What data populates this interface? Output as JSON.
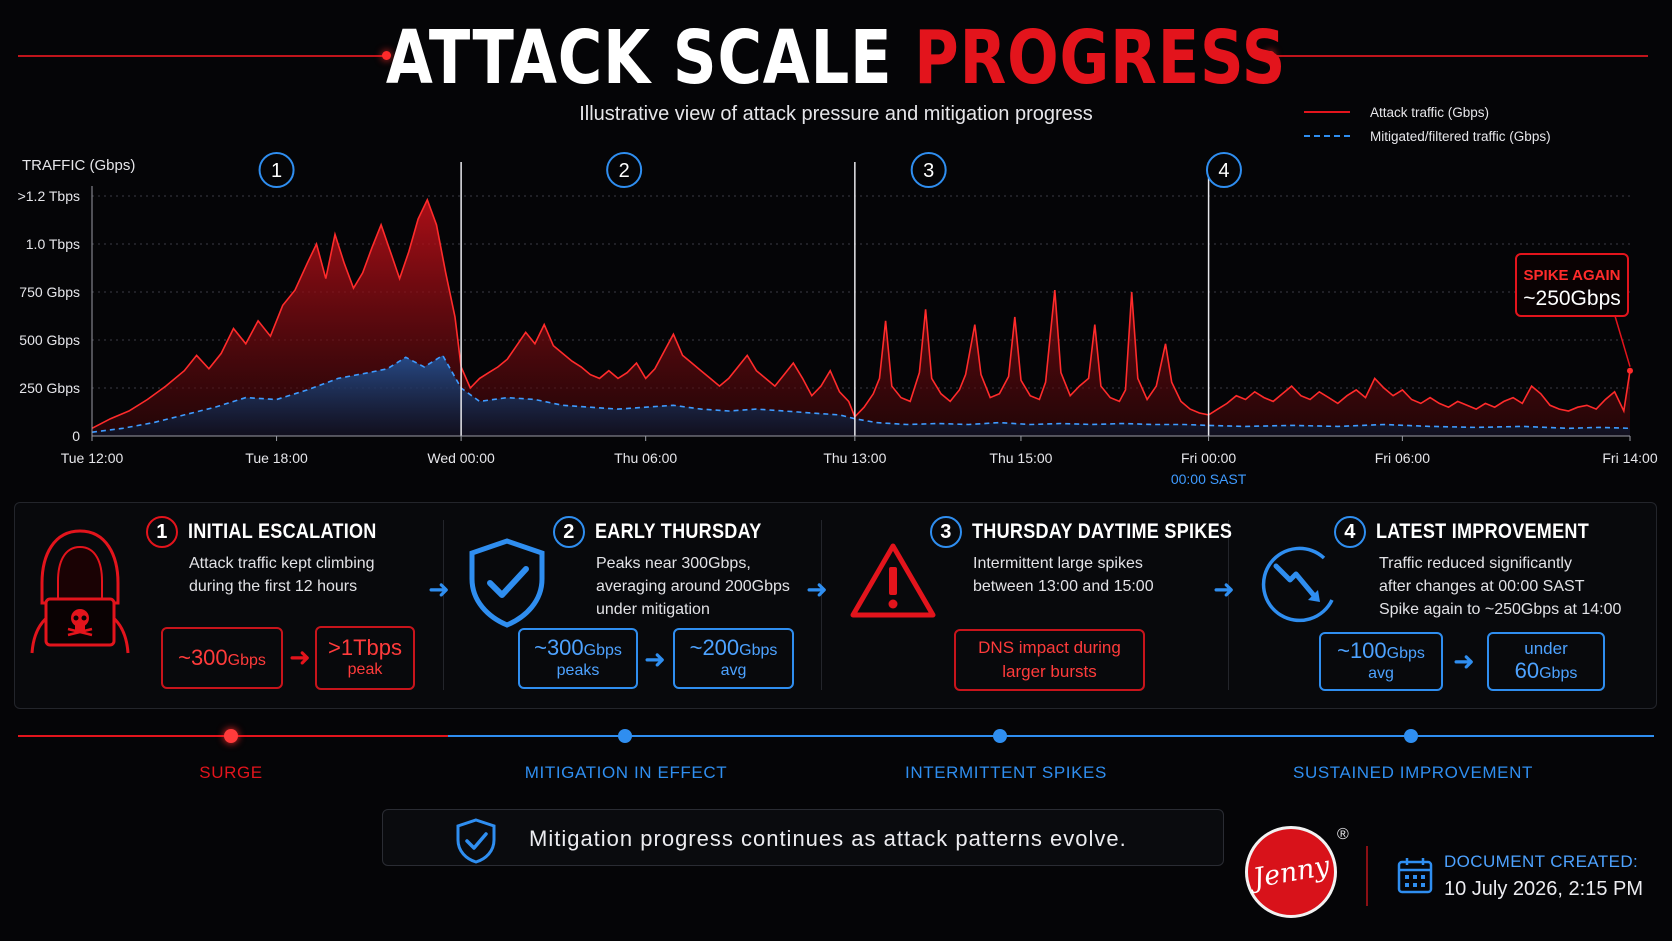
{
  "title": {
    "white": "ATTACK SCALE",
    "red": "PROGRESS"
  },
  "subtitle": "Illustrative view of attack pressure and mitigation progress",
  "legend": [
    {
      "label": "Attack traffic (Gbps)",
      "color": "#e3141c",
      "style": "solid"
    },
    {
      "label": "Mitigated/filtered traffic (Gbps)",
      "color": "#2f8ef0",
      "style": "dashed"
    }
  ],
  "colors": {
    "attack": "#e3141c",
    "mitigated": "#2f8ef0",
    "background": "#050507"
  },
  "chart_data": {
    "type": "area",
    "ylabel": "TRAFFIC (Gbps)",
    "y_ticks": [
      {
        "value": 0,
        "label": "0"
      },
      {
        "value": 250,
        "label": "250 Gbps"
      },
      {
        "value": 500,
        "label": "500 Gbps"
      },
      {
        "value": 750,
        "label": "750 Gbps"
      },
      {
        "value": 1000,
        "label": "1.0 Tbps"
      },
      {
        "value": 1250,
        "label": ">1.2 Tbps"
      }
    ],
    "ylim": [
      0,
      1250
    ],
    "x_ticks": [
      "Tue 12:00",
      "Tue 18:00",
      "Wed 00:00",
      "Thu 06:00",
      "Thu 13:00",
      "Thu 15:00",
      "Fri 00:00",
      "Fri 06:00",
      "Fri 14:00"
    ],
    "x_sub_label": "00:00 SAST",
    "grid": true,
    "phases": [
      {
        "number": "1",
        "color": "blue"
      },
      {
        "number": "2",
        "color": "blue"
      },
      {
        "number": "3",
        "color": "blue"
      },
      {
        "number": "4",
        "color": "blue"
      }
    ],
    "series": [
      {
        "name": "Attack traffic (Gbps)",
        "points": [
          [
            0.0,
            40
          ],
          [
            0.6,
            90
          ],
          [
            1.2,
            130
          ],
          [
            1.8,
            190
          ],
          [
            2.4,
            260
          ],
          [
            3.0,
            340
          ],
          [
            3.4,
            420
          ],
          [
            3.8,
            350
          ],
          [
            4.2,
            430
          ],
          [
            4.6,
            560
          ],
          [
            5.0,
            480
          ],
          [
            5.4,
            600
          ],
          [
            5.8,
            520
          ],
          [
            6.2,
            680
          ],
          [
            6.6,
            760
          ],
          [
            7.0,
            900
          ],
          [
            7.3,
            1000
          ],
          [
            7.6,
            820
          ],
          [
            7.9,
            1050
          ],
          [
            8.2,
            900
          ],
          [
            8.5,
            770
          ],
          [
            8.8,
            850
          ],
          [
            9.1,
            980
          ],
          [
            9.4,
            1100
          ],
          [
            9.7,
            960
          ],
          [
            10.0,
            820
          ],
          [
            10.3,
            960
          ],
          [
            10.6,
            1130
          ],
          [
            10.9,
            1230
          ],
          [
            11.2,
            1100
          ],
          [
            11.5,
            850
          ],
          [
            11.8,
            620
          ],
          [
            12.0,
            360
          ],
          [
            12.3,
            250
          ],
          [
            12.6,
            300
          ],
          [
            12.9,
            330
          ],
          [
            13.2,
            360
          ],
          [
            13.5,
            400
          ],
          [
            13.8,
            470
          ],
          [
            14.1,
            540
          ],
          [
            14.4,
            480
          ],
          [
            14.7,
            580
          ],
          [
            15.0,
            470
          ],
          [
            15.3,
            430
          ],
          [
            15.6,
            390
          ],
          [
            15.9,
            360
          ],
          [
            16.2,
            320
          ],
          [
            16.5,
            300
          ],
          [
            16.8,
            340
          ],
          [
            17.1,
            300
          ],
          [
            17.4,
            330
          ],
          [
            17.7,
            380
          ],
          [
            18.0,
            300
          ],
          [
            18.3,
            350
          ],
          [
            18.6,
            440
          ],
          [
            18.9,
            530
          ],
          [
            19.2,
            420
          ],
          [
            19.5,
            380
          ],
          [
            19.8,
            340
          ],
          [
            20.1,
            300
          ],
          [
            20.4,
            260
          ],
          [
            20.7,
            300
          ],
          [
            21.0,
            360
          ],
          [
            21.3,
            420
          ],
          [
            21.6,
            340
          ],
          [
            21.9,
            300
          ],
          [
            22.2,
            260
          ],
          [
            22.5,
            320
          ],
          [
            22.8,
            380
          ],
          [
            23.1,
            300
          ],
          [
            23.4,
            210
          ],
          [
            23.7,
            260
          ],
          [
            24.0,
            340
          ],
          [
            24.3,
            230
          ],
          [
            24.6,
            180
          ],
          [
            24.8,
            100
          ],
          [
            25.1,
            150
          ],
          [
            25.4,
            220
          ],
          [
            25.6,
            300
          ],
          [
            25.8,
            600
          ],
          [
            26.0,
            260
          ],
          [
            26.3,
            200
          ],
          [
            26.6,
            180
          ],
          [
            26.9,
            330
          ],
          [
            27.1,
            660
          ],
          [
            27.3,
            300
          ],
          [
            27.6,
            220
          ],
          [
            27.9,
            180
          ],
          [
            28.2,
            240
          ],
          [
            28.4,
            320
          ],
          [
            28.7,
            580
          ],
          [
            28.9,
            320
          ],
          [
            29.2,
            200
          ],
          [
            29.5,
            220
          ],
          [
            29.8,
            310
          ],
          [
            30.0,
            620
          ],
          [
            30.2,
            290
          ],
          [
            30.5,
            210
          ],
          [
            30.8,
            190
          ],
          [
            31.0,
            280
          ],
          [
            31.3,
            760
          ],
          [
            31.5,
            330
          ],
          [
            31.8,
            210
          ],
          [
            32.1,
            260
          ],
          [
            32.4,
            300
          ],
          [
            32.6,
            580
          ],
          [
            32.8,
            260
          ],
          [
            33.1,
            200
          ],
          [
            33.4,
            180
          ],
          [
            33.6,
            240
          ],
          [
            33.8,
            750
          ],
          [
            34.0,
            300
          ],
          [
            34.3,
            190
          ],
          [
            34.6,
            260
          ],
          [
            34.9,
            480
          ],
          [
            35.1,
            280
          ],
          [
            35.4,
            180
          ],
          [
            35.7,
            140
          ],
          [
            36.0,
            120
          ],
          [
            36.3,
            110
          ],
          [
            36.6,
            140
          ],
          [
            36.9,
            170
          ],
          [
            37.2,
            210
          ],
          [
            37.5,
            190
          ],
          [
            37.8,
            230
          ],
          [
            38.1,
            200
          ],
          [
            38.4,
            180
          ],
          [
            38.7,
            220
          ],
          [
            39.0,
            260
          ],
          [
            39.3,
            210
          ],
          [
            39.6,
            190
          ],
          [
            39.9,
            230
          ],
          [
            40.2,
            200
          ],
          [
            40.5,
            170
          ],
          [
            40.8,
            210
          ],
          [
            41.1,
            240
          ],
          [
            41.4,
            200
          ],
          [
            41.7,
            300
          ],
          [
            42.0,
            250
          ],
          [
            42.3,
            210
          ],
          [
            42.6,
            240
          ],
          [
            42.9,
            190
          ],
          [
            43.2,
            170
          ],
          [
            43.5,
            200
          ],
          [
            43.8,
            170
          ],
          [
            44.1,
            150
          ],
          [
            44.4,
            180
          ],
          [
            44.7,
            160
          ],
          [
            45.0,
            140
          ],
          [
            45.3,
            170
          ],
          [
            45.6,
            150
          ],
          [
            45.9,
            180
          ],
          [
            46.2,
            200
          ],
          [
            46.5,
            170
          ],
          [
            46.8,
            260
          ],
          [
            47.1,
            220
          ],
          [
            47.4,
            160
          ],
          [
            47.7,
            140
          ],
          [
            48.0,
            130
          ],
          [
            48.3,
            150
          ],
          [
            48.6,
            160
          ],
          [
            48.9,
            140
          ],
          [
            49.2,
            190
          ],
          [
            49.5,
            230
          ],
          [
            49.8,
            130
          ],
          [
            50.0,
            340
          ]
        ]
      },
      {
        "name": "Mitigated/filtered traffic (Gbps)",
        "points": [
          [
            0.0,
            20
          ],
          [
            1.0,
            40
          ],
          [
            2.0,
            70
          ],
          [
            3.0,
            110
          ],
          [
            4.0,
            150
          ],
          [
            5.0,
            200
          ],
          [
            6.0,
            190
          ],
          [
            7.0,
            240
          ],
          [
            8.0,
            300
          ],
          [
            9.0,
            330
          ],
          [
            9.6,
            350
          ],
          [
            10.2,
            410
          ],
          [
            10.8,
            360
          ],
          [
            11.4,
            420
          ],
          [
            12.0,
            250
          ],
          [
            12.6,
            180
          ],
          [
            13.5,
            200
          ],
          [
            14.4,
            190
          ],
          [
            15.3,
            160
          ],
          [
            16.2,
            150
          ],
          [
            17.1,
            140
          ],
          [
            18.0,
            150
          ],
          [
            18.9,
            160
          ],
          [
            19.8,
            140
          ],
          [
            20.7,
            130
          ],
          [
            21.6,
            140
          ],
          [
            22.5,
            130
          ],
          [
            23.4,
            120
          ],
          [
            24.3,
            110
          ],
          [
            24.8,
            90
          ],
          [
            25.5,
            70
          ],
          [
            26.5,
            60
          ],
          [
            27.5,
            65
          ],
          [
            28.5,
            60
          ],
          [
            29.5,
            70
          ],
          [
            30.5,
            60
          ],
          [
            31.5,
            65
          ],
          [
            32.5,
            60
          ],
          [
            33.5,
            65
          ],
          [
            34.5,
            60
          ],
          [
            35.5,
            60
          ],
          [
            36.3,
            55
          ],
          [
            37.5,
            50
          ],
          [
            39.0,
            55
          ],
          [
            40.5,
            50
          ],
          [
            42.0,
            60
          ],
          [
            43.5,
            50
          ],
          [
            45.0,
            45
          ],
          [
            46.5,
            50
          ],
          [
            48.0,
            40
          ],
          [
            49.0,
            45
          ],
          [
            50.0,
            40
          ]
        ]
      }
    ],
    "annotation": {
      "line1": "SPIKE AGAIN",
      "line2": "~250Gbps"
    }
  },
  "sections": [
    {
      "number": "1",
      "title": "INITIAL ESCALATION",
      "desc": [
        "Attack traffic kept climbing",
        "during the first 12 hours"
      ],
      "boxes": [
        {
          "big": "~300",
          "unit": "Gbps",
          "small": ""
        },
        {
          "big": ">1Tbps",
          "unit": "",
          "small": "peak"
        }
      ]
    },
    {
      "number": "2",
      "title": "EARLY THURSDAY",
      "desc": [
        "Peaks near 300Gbps,",
        "averaging around 200Gbps",
        "under mitigation"
      ],
      "boxes": [
        {
          "big": "~300",
          "unit": "Gbps",
          "small": "peaks"
        },
        {
          "big": "~200",
          "unit": "Gbps",
          "small": "avg"
        }
      ]
    },
    {
      "number": "3",
      "title": "THURSDAY DAYTIME SPIKES",
      "desc": [
        "Intermittent large spikes",
        "between 13:00 and 15:00"
      ],
      "boxes": [
        {
          "line1": "DNS impact during",
          "line2": "larger bursts"
        }
      ]
    },
    {
      "number": "4",
      "title": "LATEST IMPROVEMENT",
      "desc": [
        "Traffic reduced significantly",
        "after changes at 00:00 SAST",
        "Spike again to ~250Gbps at 14:00"
      ],
      "boxes": [
        {
          "big": "~100",
          "unit": "Gbps",
          "small": "avg"
        },
        {
          "top": "under",
          "big": "60",
          "unit": "Gbps"
        }
      ]
    }
  ],
  "timeline": [
    {
      "label": "SURGE",
      "color": "#e3141c"
    },
    {
      "label": "MITIGATION IN EFFECT",
      "color": "#2f8ef0"
    },
    {
      "label": "INTERMITTENT SPIKES",
      "color": "#2f8ef0"
    },
    {
      "label": "SUSTAINED IMPROVEMENT",
      "color": "#2f8ef0"
    }
  ],
  "banner": {
    "text": "Mitigation progress continues as attack patterns evolve.",
    "icon": "shield-check-icon"
  },
  "logo": {
    "text": "Jenny",
    "reg": "®"
  },
  "document": {
    "label": "DOCUMENT CREATED:",
    "date": "10 July 2026, 2:15 PM",
    "icon": "calendar-icon"
  }
}
